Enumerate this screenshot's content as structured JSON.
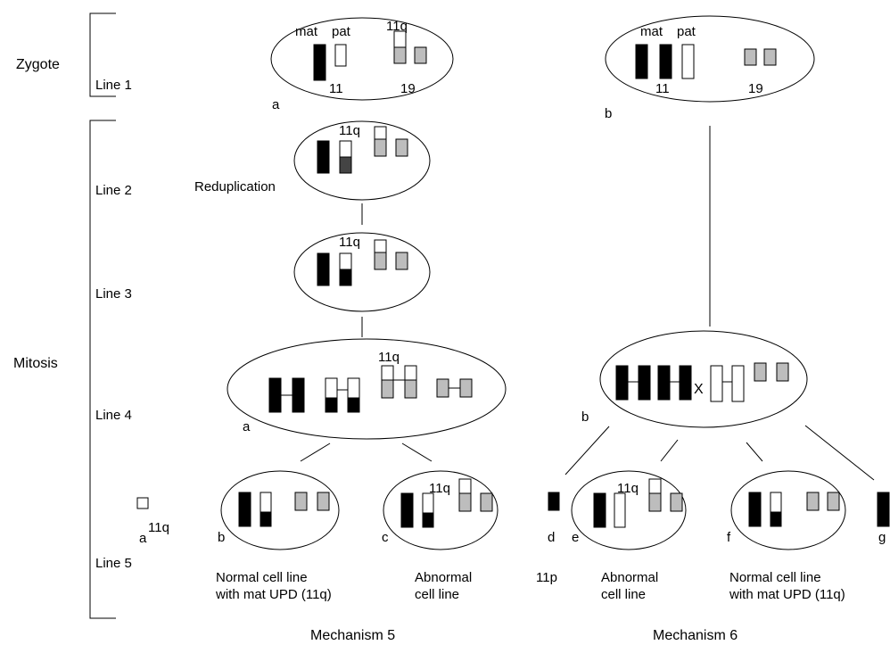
{
  "stages": {
    "zygote": "Zygote",
    "mitosis": "Mitosis"
  },
  "lines": {
    "l1": "Line 1",
    "l2": "Line 2",
    "l3": "Line 3",
    "l4": "Line 4",
    "l5": "Line 5"
  },
  "labels": {
    "mat": "mat",
    "pat": "pat",
    "q11": "11q",
    "p11": "11p",
    "chr11": "11",
    "chr19": "19",
    "x": "X",
    "reduplication": "Reduplication"
  },
  "letters": {
    "a": "a",
    "b": "b",
    "c": "c",
    "d": "d",
    "e": "e",
    "f": "f",
    "g": "g"
  },
  "captions": {
    "normal_1": "Normal cell line",
    "normal_2": "with mat UPD (11q)",
    "abnormal_1": "Abnormal",
    "abnormal_2": "cell line"
  },
  "mechanisms": {
    "m5": "Mechanism 5",
    "m6": "Mechanism 6"
  },
  "colors": {
    "maternal": "#000000",
    "paternal": "#ffffff",
    "chr19": "#bdbdbd",
    "reduplicated": "#444444"
  }
}
